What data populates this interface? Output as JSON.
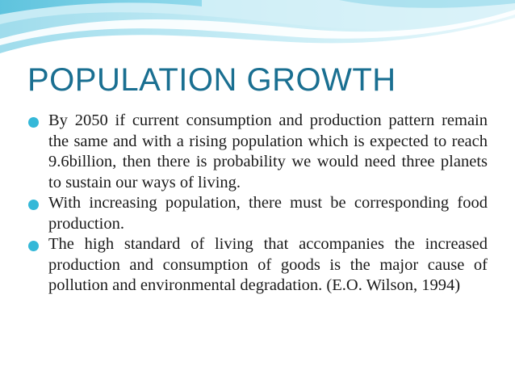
{
  "slide": {
    "title": "POPULATION GROWTH",
    "accent_color": "#35b8d8",
    "title_color": "#1a6f91",
    "bullets": [
      {
        "text": "By 2050 if current consumption and production pattern remain the same and with a rising population which is expected to reach 9.6billion, then there is probability we would need three planets to sustain our ways of living.",
        "icon": "bullet-dot-icon"
      },
      {
        "text": "With increasing population, there must be corresponding food production.",
        "icon": "bullet-dot-icon"
      },
      {
        "text": "The high standard of living that accompanies the increased production and consumption of goods is the major cause of pollution and environmental degradation. (E.O. Wilson, 1994)",
        "icon": "bullet-dot-icon"
      }
    ]
  }
}
